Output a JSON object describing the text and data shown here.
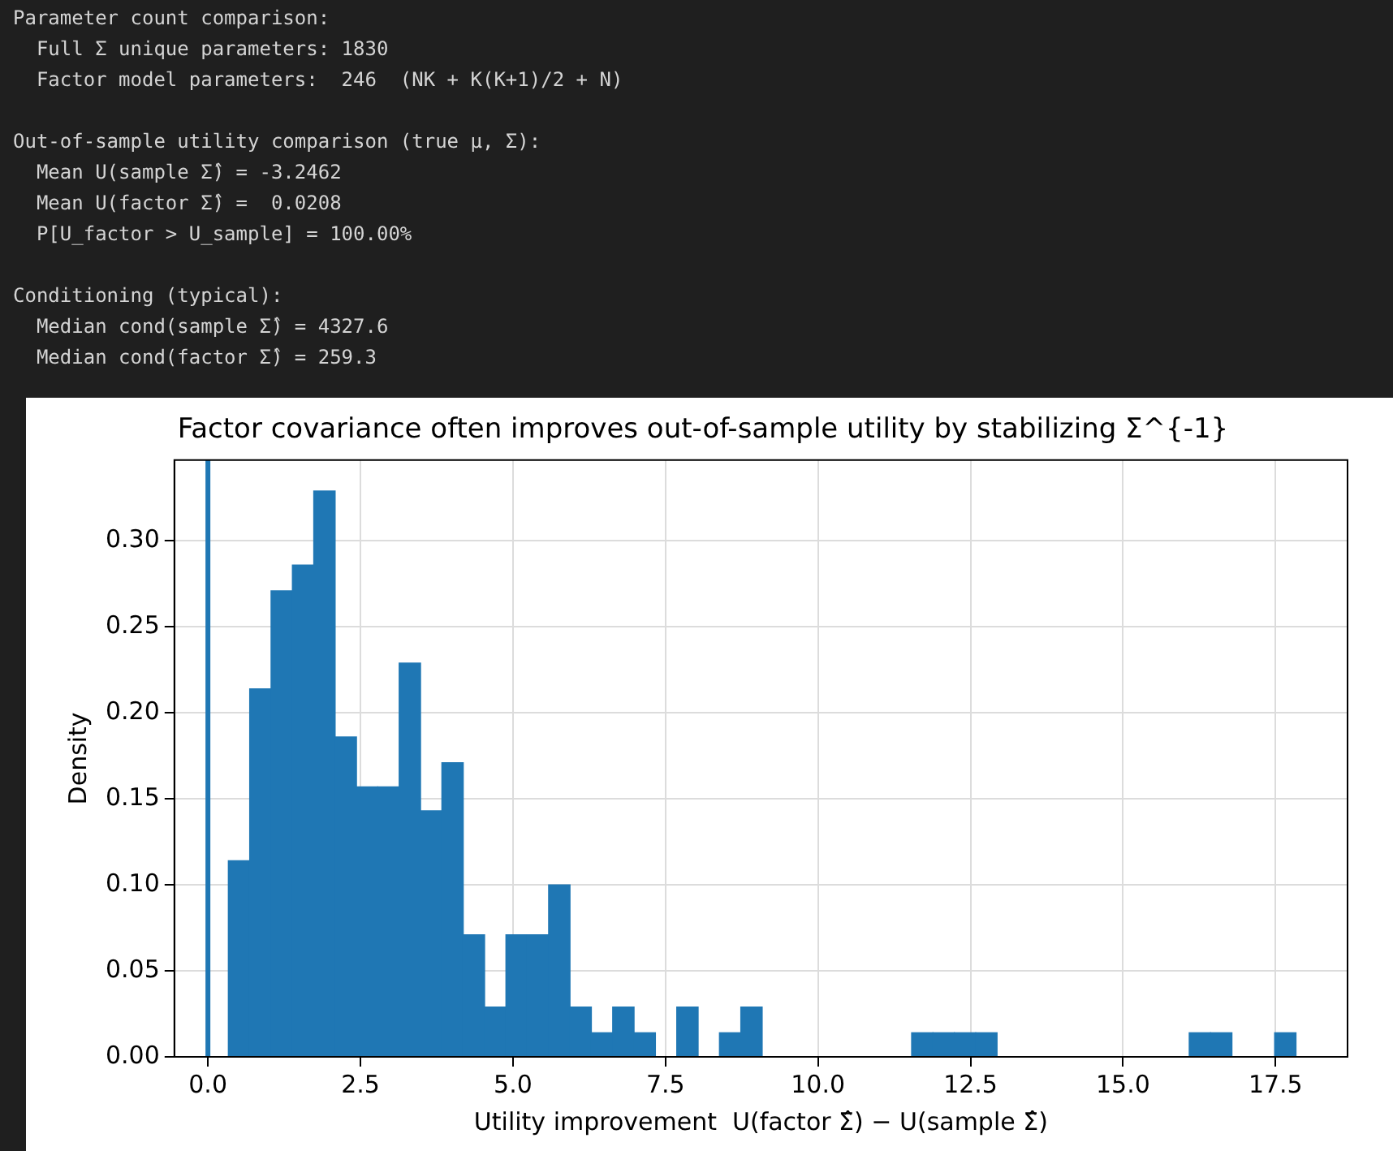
{
  "chart_data": {
    "type": "histogram",
    "title": "Factor covariance often improves out-of-sample utility by stabilizing Σ^{-1}",
    "xlabel": "Utility improvement  U(factor Σ̂) − U(sample Σ̂)",
    "ylabel": "Density",
    "annotations": [
      "Parameter count comparison:\n  Full Σ unique parameters: 1830\n  Factor model parameters:  246  (NK + K(K+1)/2 + N)",
      "Out-of-sample utility comparison (true μ, Σ):\n  Mean U(sample Σ̂) = -3.2462\n  Mean U(factor Σ̂) =  0.0208\n  P[U_factor > U_sample] = 100.00%",
      "Conditioning (typical):\n  Median cond(sample Σ̂) = 4327.6\n  Median cond(factor Σ̂) = 259.3"
    ],
    "bins": [
      0.335,
      0.685,
      1.035,
      1.385,
      1.735,
      2.085,
      2.435,
      2.785,
      3.135,
      3.485,
      3.835,
      4.185,
      4.535,
      4.885,
      5.235,
      5.585,
      5.935,
      6.285,
      6.635,
      6.985,
      7.335,
      7.685,
      8.035,
      8.385,
      8.735,
      9.085,
      9.435,
      9.785,
      10.135,
      10.485,
      10.835,
      11.185,
      11.535,
      11.885,
      12.235,
      12.585,
      12.935,
      13.285,
      13.635,
      13.985,
      14.335,
      14.685,
      15.035,
      15.385,
      15.735,
      16.085,
      16.435,
      16.785,
      17.135,
      17.485,
      17.835
    ],
    "values": [
      0.114,
      0.214,
      0.271,
      0.286,
      0.329,
      0.186,
      0.157,
      0.157,
      0.229,
      0.143,
      0.171,
      0.071,
      0.029,
      0.071,
      0.071,
      0.1,
      0.029,
      0.014,
      0.029,
      0.014,
      0,
      0.029,
      0,
      0.014,
      0.029,
      0,
      0,
      0,
      0,
      0,
      0,
      0,
      0.014,
      0.014,
      0.014,
      0.014,
      0,
      0,
      0,
      0,
      0,
      0,
      0,
      0,
      0,
      0.014,
      0.014,
      0,
      0,
      0.014
    ],
    "color": "#1f77b4",
    "xlim": [
      -0.55,
      18.68
    ],
    "xticks": [
      {
        "value": 0,
        "label": "0.0"
      },
      {
        "value": 2.5,
        "label": "2.5"
      },
      {
        "value": 5,
        "label": "5.0"
      },
      {
        "value": 7.5,
        "label": "7.5"
      },
      {
        "value": 10,
        "label": "10.0"
      },
      {
        "value": 12.5,
        "label": "12.5"
      },
      {
        "value": 15,
        "label": "15.0"
      },
      {
        "value": 17.5,
        "label": "17.5"
      }
    ],
    "ylim": [
      0,
      0.347
    ],
    "yticks": [
      {
        "value": 0,
        "label": "0.00"
      },
      {
        "value": 0.05,
        "label": "0.05"
      },
      {
        "value": 0.1,
        "label": "0.10"
      },
      {
        "value": 0.15,
        "label": "0.15"
      },
      {
        "value": 0.2,
        "label": "0.20"
      },
      {
        "value": 0.25,
        "label": "0.25"
      },
      {
        "value": 0.3,
        "label": "0.30"
      }
    ],
    "ref_lines": [
      {
        "axis": "x",
        "value": 0,
        "color": "#1f77b4"
      }
    ],
    "grid": true,
    "legend": false
  }
}
